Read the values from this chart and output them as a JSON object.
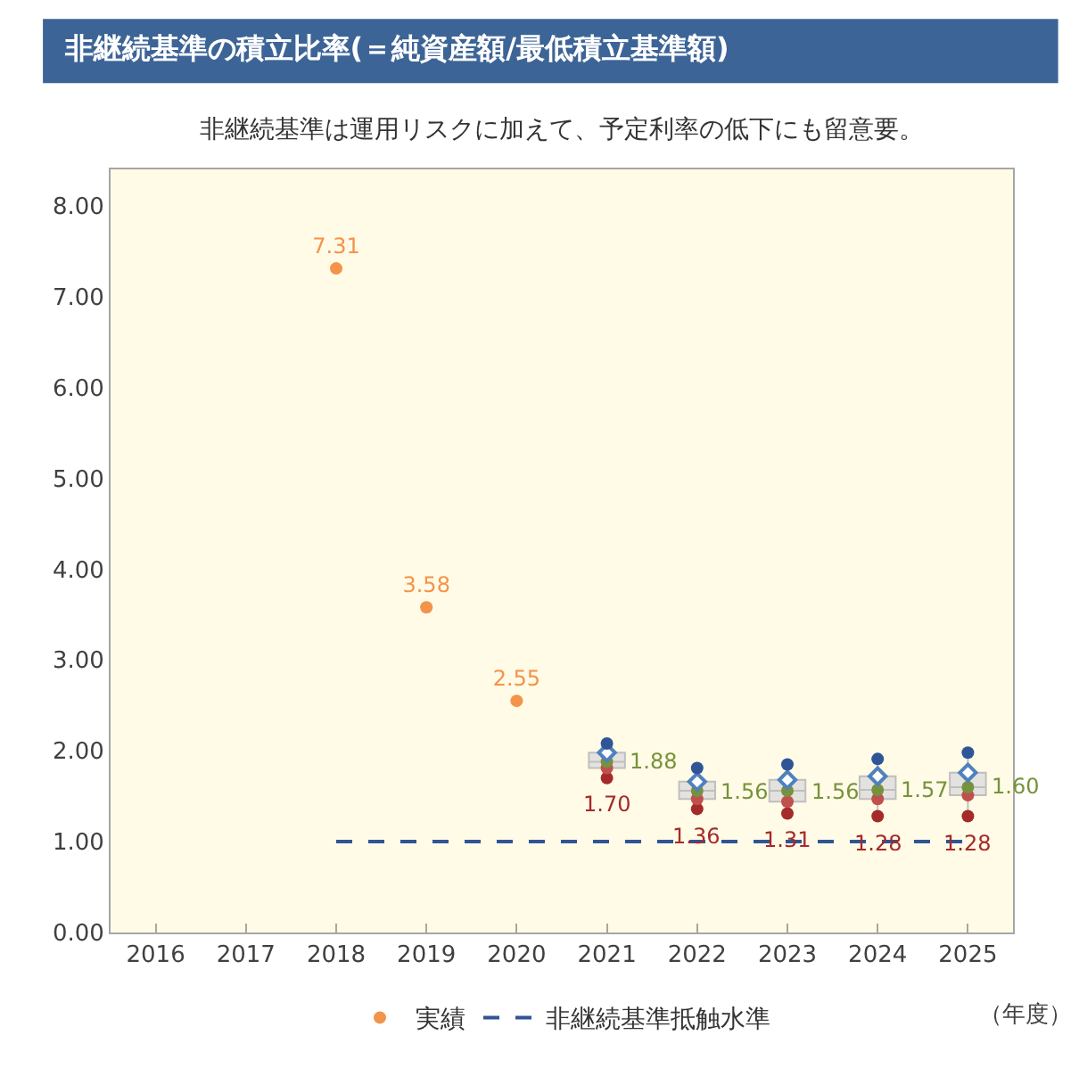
{
  "chart_data": {
    "type": "scatter",
    "title": "非継続基準の積立比率(＝純資産額/最低積立基準額)",
    "subtitle": "非継続基準は運用リスクに加えて、予定利率の低下にも留意要。",
    "xlabel": "（年度）",
    "categories": [
      "2016",
      "2017",
      "2018",
      "2019",
      "2020",
      "2021",
      "2022",
      "2023",
      "2024",
      "2025"
    ],
    "series": [
      {
        "name": "実績",
        "color": "#f4934a",
        "values": [
          null,
          null,
          7.31,
          3.58,
          2.55,
          null,
          null,
          null,
          null,
          null
        ],
        "data_labels": true
      },
      {
        "color": "#a52a2a",
        "values": [
          null,
          null,
          null,
          null,
          null,
          1.7,
          1.36,
          1.31,
          1.28,
          1.28
        ]
      },
      {
        "color": "#c0504d",
        "values": [
          null,
          null,
          null,
          null,
          null,
          1.81,
          1.47,
          1.44,
          1.47,
          1.51
        ]
      },
      {
        "color": "#76923c",
        "values": [
          null,
          null,
          null,
          null,
          null,
          1.88,
          1.56,
          1.56,
          1.57,
          1.6
        ]
      },
      {
        "color": "#4f81bd",
        "marker": "diamond",
        "values": [
          null,
          null,
          null,
          null,
          null,
          1.98,
          1.66,
          1.68,
          1.72,
          1.76
        ]
      },
      {
        "color": "#2f5597",
        "values": [
          null,
          null,
          null,
          null,
          null,
          2.08,
          1.81,
          1.85,
          1.91,
          1.98
        ]
      },
      {
        "type": "box",
        "color": "#bfbfbf",
        "boxes": [
          null,
          null,
          null,
          null,
          null,
          {
            "low": 1.7,
            "q1": 1.81,
            "median": 1.88,
            "q3": 1.98,
            "high": 2.08
          },
          {
            "low": 1.36,
            "q1": 1.47,
            "median": 1.56,
            "q3": 1.66,
            "high": 1.81
          },
          {
            "low": 1.31,
            "q1": 1.44,
            "median": 1.56,
            "q3": 1.68,
            "high": 1.85
          },
          {
            "low": 1.28,
            "q1": 1.47,
            "median": 1.57,
            "q3": 1.72,
            "high": 1.91
          },
          {
            "low": 1.28,
            "q1": 1.51,
            "median": 1.6,
            "q3": 1.76,
            "high": 1.98
          }
        ]
      }
    ],
    "annotations": [
      {
        "text": "1.88",
        "x": "2021",
        "y": 1.88
      },
      {
        "text": "1.70",
        "x": "2021",
        "y": 1.7
      },
      {
        "text": "1.56",
        "x": "2022",
        "y": 1.56
      },
      {
        "text": "1.36",
        "x": "2022",
        "y": 1.36
      },
      {
        "text": "1.56",
        "x": "2023",
        "y": 1.56
      },
      {
        "text": "1.31",
        "x": "2023",
        "y": 1.31
      },
      {
        "text": "1.57",
        "x": "2024",
        "y": 1.57
      },
      {
        "text": "1.28",
        "x": "2024",
        "y": 1.28
      },
      {
        "text": "1.60",
        "x": "2025",
        "y": 1.6
      },
      {
        "text": "1.28",
        "x": "2025",
        "y": 1.28
      }
    ],
    "ref_lines": [
      {
        "axis": "y",
        "value": 1.0,
        "label": "非継続基準抵触水準",
        "color": "#2f5597",
        "line_style": "dashed"
      }
    ],
    "ylim": [
      0,
      8.4
    ],
    "yticks": [
      {
        "value": 0,
        "label": "0.00"
      },
      {
        "value": 1,
        "label": "1.00"
      },
      {
        "value": 2,
        "label": "2.00"
      },
      {
        "value": 3,
        "label": "3.00"
      },
      {
        "value": 4,
        "label": "4.00"
      },
      {
        "value": 5,
        "label": "5.00"
      },
      {
        "value": 6,
        "label": "6.00"
      },
      {
        "value": 7,
        "label": "7.00"
      },
      {
        "value": 8,
        "label": "8.00"
      }
    ],
    "grid": false,
    "legend": "bottom",
    "marker": "circle"
  }
}
